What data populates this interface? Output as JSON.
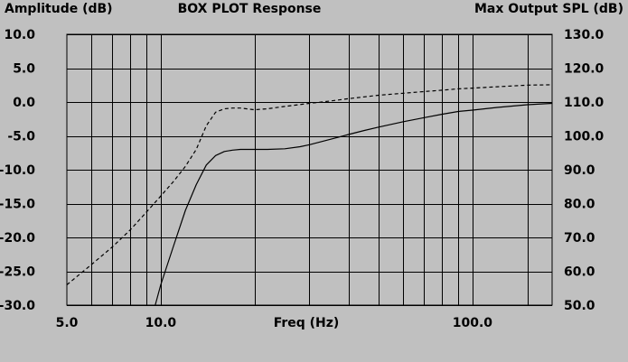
{
  "colors": {
    "background": "#c0c0c0",
    "ink": "#000000"
  },
  "chart_data": {
    "type": "line",
    "title": "BOX PLOT  Response",
    "left_axis_title": "Amplitude (dB)",
    "right_axis_title": "Max Output SPL (dB)",
    "xlabel": "Freq (Hz)",
    "x_scale": "log",
    "xlim": [
      5.0,
      180.0
    ],
    "x_ticks": [
      {
        "value": 5.0,
        "label": "5.0"
      },
      {
        "value": 10.0,
        "label": "10.0"
      },
      {
        "value": 100.0,
        "label": "100.0"
      }
    ],
    "x_gridlines": [
      6,
      7,
      8,
      9,
      10,
      20,
      30,
      40,
      50,
      60,
      70,
      80,
      90,
      100,
      150
    ],
    "ylim_left": [
      -30.0,
      10.0
    ],
    "left_ticks": [
      {
        "value": 10.0,
        "label": "10.0"
      },
      {
        "value": 5.0,
        "label": "5.0"
      },
      {
        "value": 0.0,
        "label": "0.0"
      },
      {
        "value": -5.0,
        "label": "-5.0"
      },
      {
        "value": -10.0,
        "label": "-10.0"
      },
      {
        "value": -15.0,
        "label": "-15.0"
      },
      {
        "value": -20.0,
        "label": "-20.0"
      },
      {
        "value": -25.0,
        "label": "-25.0"
      },
      {
        "value": -30.0,
        "label": "-30.0"
      }
    ],
    "ylim_right": [
      50.0,
      130.0
    ],
    "right_ticks": [
      {
        "value": 130.0,
        "label": "130.0"
      },
      {
        "value": 120.0,
        "label": "120.0"
      },
      {
        "value": 110.0,
        "label": "110.0"
      },
      {
        "value": 100.0,
        "label": "100.0"
      },
      {
        "value": 90.0,
        "label": "90.0"
      },
      {
        "value": 80.0,
        "label": "80.0"
      },
      {
        "value": 70.0,
        "label": "70.0"
      },
      {
        "value": 60.0,
        "label": "60.0"
      },
      {
        "value": 50.0,
        "label": "50.0"
      }
    ],
    "grid": true,
    "series": [
      {
        "axis": "left",
        "style": "solid",
        "x": [
          9.6,
          10.0,
          11.0,
          12.0,
          13.0,
          14.0,
          15.0,
          16.0,
          17.0,
          18.0,
          20.0,
          22.0,
          25.0,
          28.0,
          30.0,
          35.0,
          40.0,
          45.0,
          50.0,
          60.0,
          70.0,
          80.0,
          90.0,
          100.0,
          120.0,
          150.0,
          180.0
        ],
        "y": [
          -30.0,
          -27.0,
          -21.2,
          -16.0,
          -12.2,
          -9.3,
          -7.9,
          -7.3,
          -7.1,
          -7.0,
          -7.0,
          -7.0,
          -6.9,
          -6.6,
          -6.3,
          -5.5,
          -4.8,
          -4.2,
          -3.7,
          -2.9,
          -2.3,
          -1.8,
          -1.4,
          -1.2,
          -0.8,
          -0.4,
          -0.2
        ]
      },
      {
        "axis": "right",
        "style": "dashed",
        "x": [
          5.0,
          6.0,
          7.0,
          8.0,
          9.0,
          10.0,
          11.0,
          12.0,
          13.0,
          14.0,
          15.0,
          16.0,
          17.0,
          18.0,
          20.0,
          22.0,
          25.0,
          30.0,
          35.0,
          40.0,
          50.0,
          60.0,
          70.0,
          80.0,
          90.0,
          100.0,
          120.0,
          150.0,
          180.0
        ],
        "y": [
          56.0,
          62.0,
          67.2,
          72.3,
          77.5,
          82.2,
          86.6,
          91.0,
          96.0,
          103.0,
          107.0,
          108.0,
          108.2,
          108.2,
          107.7,
          108.0,
          108.7,
          109.6,
          110.3,
          111.0,
          112.0,
          112.6,
          113.1,
          113.5,
          113.9,
          114.1,
          114.5,
          115.0,
          115.1
        ]
      }
    ]
  }
}
